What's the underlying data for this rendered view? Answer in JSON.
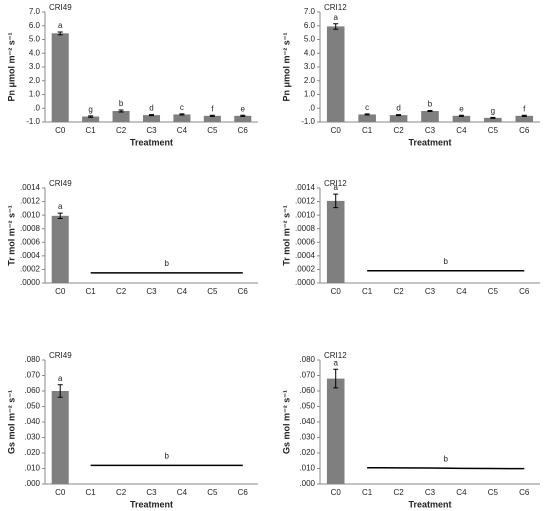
{
  "chart_data": [
    {
      "type": "bar",
      "title": "CRI49",
      "ylabel": "Pn μmol m⁻² s⁻¹",
      "xlabel": "Treatment",
      "color": "#7f7f7f",
      "categories": [
        "C0",
        "C1",
        "C2",
        "C3",
        "C4",
        "C5",
        "C6"
      ],
      "ylim": [
        -1,
        7
      ],
      "yticks": [
        {
          "value": -1,
          "label": "-1.0"
        },
        {
          "value": 0,
          "label": ".0"
        },
        {
          "value": 1,
          "label": "1.0"
        },
        {
          "value": 2,
          "label": "2.0"
        },
        {
          "value": 3,
          "label": "3.0"
        },
        {
          "value": 4,
          "label": "4.0"
        },
        {
          "value": 5,
          "label": "5.0"
        },
        {
          "value": 6,
          "label": "6.0"
        },
        {
          "value": 7,
          "label": "7.0"
        }
      ],
      "series": [
        {
          "type": "bar",
          "values": [
            5.45,
            -0.6,
            -0.2,
            -0.5,
            -0.45,
            -0.55,
            -0.55
          ],
          "errors": [
            0.1,
            0.05,
            0.07,
            0.04,
            0.04,
            0.04,
            0.04
          ],
          "labels": [
            "a",
            "g",
            "b",
            "d",
            "c",
            "f",
            "e"
          ]
        }
      ]
    },
    {
      "type": "bar",
      "title": "CRI12",
      "ylabel": "Pn μmol m⁻² s⁻¹",
      "xlabel": "Treatment",
      "color": "#7f7f7f",
      "categories": [
        "C0",
        "C1",
        "C2",
        "C3",
        "C4",
        "C5",
        "C6"
      ],
      "ylim": [
        -1,
        7
      ],
      "yticks": [
        {
          "value": -1,
          "label": "-1.0"
        },
        {
          "value": 0,
          "label": ".0"
        },
        {
          "value": 1,
          "label": "1.0"
        },
        {
          "value": 2,
          "label": "2.0"
        },
        {
          "value": 3,
          "label": "3.0"
        },
        {
          "value": 4,
          "label": "4.0"
        },
        {
          "value": 5,
          "label": "5.0"
        },
        {
          "value": 6,
          "label": "6.0"
        },
        {
          "value": 7,
          "label": "7.0"
        }
      ],
      "series": [
        {
          "type": "bar",
          "values": [
            5.95,
            -0.45,
            -0.5,
            -0.2,
            -0.55,
            -0.7,
            -0.55
          ],
          "errors": [
            0.2,
            0.04,
            0.04,
            0.04,
            0.04,
            0.04,
            0.04
          ],
          "labels": [
            "a",
            "c",
            "d",
            "b",
            "e",
            "g",
            "f"
          ]
        }
      ]
    },
    {
      "type": "bar",
      "title": "CRI49",
      "ylabel": "Tr mol m⁻² s⁻¹",
      "color": "#7f7f7f",
      "categories": [
        "C0",
        "C1",
        "C2",
        "C3",
        "C4",
        "C5",
        "C6"
      ],
      "ylim": [
        0,
        0.0014
      ],
      "yticks": [
        {
          "value": 0,
          "label": ".0000"
        },
        {
          "value": 0.0002,
          "label": ".0002"
        },
        {
          "value": 0.0004,
          "label": ".0004"
        },
        {
          "value": 0.0006,
          "label": ".0006"
        },
        {
          "value": 0.0008,
          "label": ".0008"
        },
        {
          "value": 0.001,
          "label": ".0010"
        },
        {
          "value": 0.0012,
          "label": ".0012"
        },
        {
          "value": 0.0014,
          "label": ".0014"
        }
      ],
      "series": [
        {
          "type": "bar",
          "values": [
            0.00099,
            null,
            null,
            null,
            null,
            null,
            null
          ],
          "errors": [
            4e-05,
            null,
            null,
            null,
            null,
            null,
            null
          ],
          "labels": [
            "a",
            null,
            null,
            null,
            null,
            null,
            null
          ]
        },
        {
          "type": "line",
          "values": [
            null,
            0.00015,
            0.00015,
            0.00015,
            0.00015,
            0.00015,
            0.00015
          ],
          "label": "b"
        }
      ]
    },
    {
      "type": "bar",
      "title": "CRI12",
      "ylabel": "Tr mol m⁻² s⁻¹",
      "color": "#7f7f7f",
      "categories": [
        "C0",
        "C1",
        "C2",
        "C3",
        "C4",
        "C5",
        "C6"
      ],
      "ylim": [
        0,
        0.0014
      ],
      "yticks": [
        {
          "value": 0,
          "label": ".0000"
        },
        {
          "value": 0.0002,
          "label": ".0002"
        },
        {
          "value": 0.0004,
          "label": ".0004"
        },
        {
          "value": 0.0006,
          "label": ".0006"
        },
        {
          "value": 0.0008,
          "label": ".0008"
        },
        {
          "value": 0.001,
          "label": ".0010"
        },
        {
          "value": 0.0012,
          "label": ".0012"
        },
        {
          "value": 0.0014,
          "label": ".0014"
        }
      ],
      "series": [
        {
          "type": "bar",
          "values": [
            0.00121,
            null,
            null,
            null,
            null,
            null,
            null
          ],
          "errors": [
            0.0001,
            null,
            null,
            null,
            null,
            null,
            null
          ],
          "labels": [
            "a",
            null,
            null,
            null,
            null,
            null,
            null
          ]
        },
        {
          "type": "line",
          "values": [
            null,
            0.00018,
            0.00018,
            0.00018,
            0.00018,
            0.00018,
            0.00018
          ],
          "label": "b"
        }
      ]
    },
    {
      "type": "bar",
      "title": "CRI49",
      "ylabel": "Gs mol m⁻² s⁻¹",
      "xlabel": "Treatment",
      "color": "#7f7f7f",
      "categories": [
        "C0",
        "C1",
        "C2",
        "C3",
        "C4",
        "C5",
        "C6"
      ],
      "ylim": [
        0,
        0.08
      ],
      "yticks": [
        {
          "value": 0,
          "label": ".000"
        },
        {
          "value": 0.01,
          "label": ".010"
        },
        {
          "value": 0.02,
          "label": ".020"
        },
        {
          "value": 0.03,
          "label": ".030"
        },
        {
          "value": 0.04,
          "label": ".040"
        },
        {
          "value": 0.05,
          "label": ".050"
        },
        {
          "value": 0.06,
          "label": ".060"
        },
        {
          "value": 0.07,
          "label": ".070"
        },
        {
          "value": 0.08,
          "label": ".080"
        }
      ],
      "series": [
        {
          "type": "bar",
          "values": [
            0.06,
            null,
            null,
            null,
            null,
            null,
            null
          ],
          "errors": [
            0.004,
            null,
            null,
            null,
            null,
            null,
            null
          ],
          "labels": [
            "a",
            null,
            null,
            null,
            null,
            null,
            null
          ]
        },
        {
          "type": "line",
          "values": [
            null,
            0.012,
            0.012,
            0.012,
            0.012,
            0.012,
            0.012
          ],
          "label": "b"
        }
      ]
    },
    {
      "type": "bar",
      "title": "CRI12",
      "ylabel": "Gs mol m⁻² s⁻¹",
      "xlabel": "Treatment",
      "color": "#7f7f7f",
      "categories": [
        "C0",
        "C1",
        "C2",
        "C3",
        "C4",
        "C5",
        "C6"
      ],
      "ylim": [
        0,
        0.08
      ],
      "yticks": [
        {
          "value": 0,
          "label": ".000"
        },
        {
          "value": 0.01,
          "label": ".010"
        },
        {
          "value": 0.02,
          "label": ".020"
        },
        {
          "value": 0.03,
          "label": ".030"
        },
        {
          "value": 0.04,
          "label": ".040"
        },
        {
          "value": 0.05,
          "label": ".050"
        },
        {
          "value": 0.06,
          "label": ".060"
        },
        {
          "value": 0.07,
          "label": ".070"
        },
        {
          "value": 0.08,
          "label": ".080"
        }
      ],
      "series": [
        {
          "type": "bar",
          "values": [
            0.068,
            null,
            null,
            null,
            null,
            null,
            null
          ],
          "errors": [
            0.006,
            null,
            null,
            null,
            null,
            null,
            null
          ],
          "labels": [
            "a",
            null,
            null,
            null,
            null,
            null,
            null
          ]
        },
        {
          "type": "line",
          "values": [
            null,
            0.0105,
            0.0104,
            0.0103,
            0.0101,
            0.01,
            0.0099
          ],
          "label": "b"
        }
      ]
    }
  ]
}
